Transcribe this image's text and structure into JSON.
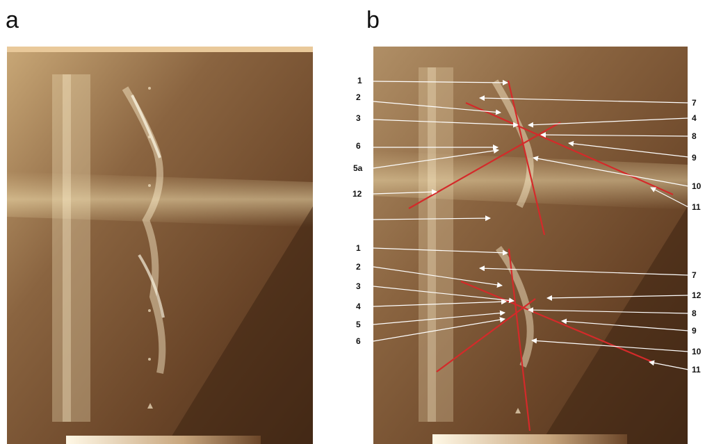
{
  "panels": {
    "a": {
      "letter": "a"
    },
    "b": {
      "letter": "b"
    }
  },
  "labels": {
    "upper_left": [
      "1",
      "2",
      "3",
      "6",
      "5a",
      "12"
    ],
    "upper_right": [
      "7",
      "4",
      "8",
      "9",
      "10",
      "11"
    ],
    "lower_left": [
      "1",
      "2",
      "3",
      "4",
      "5",
      "6"
    ],
    "lower_right": [
      "7",
      "12",
      "8",
      "9",
      "10",
      "11"
    ]
  },
  "colors": {
    "sonogram_dark": "#4a2e1a",
    "sonogram_mid": "#8a6440",
    "sonogram_light": "#d8c49a",
    "annotation_line": "#d42a2a",
    "arrow": "#ffffff"
  }
}
